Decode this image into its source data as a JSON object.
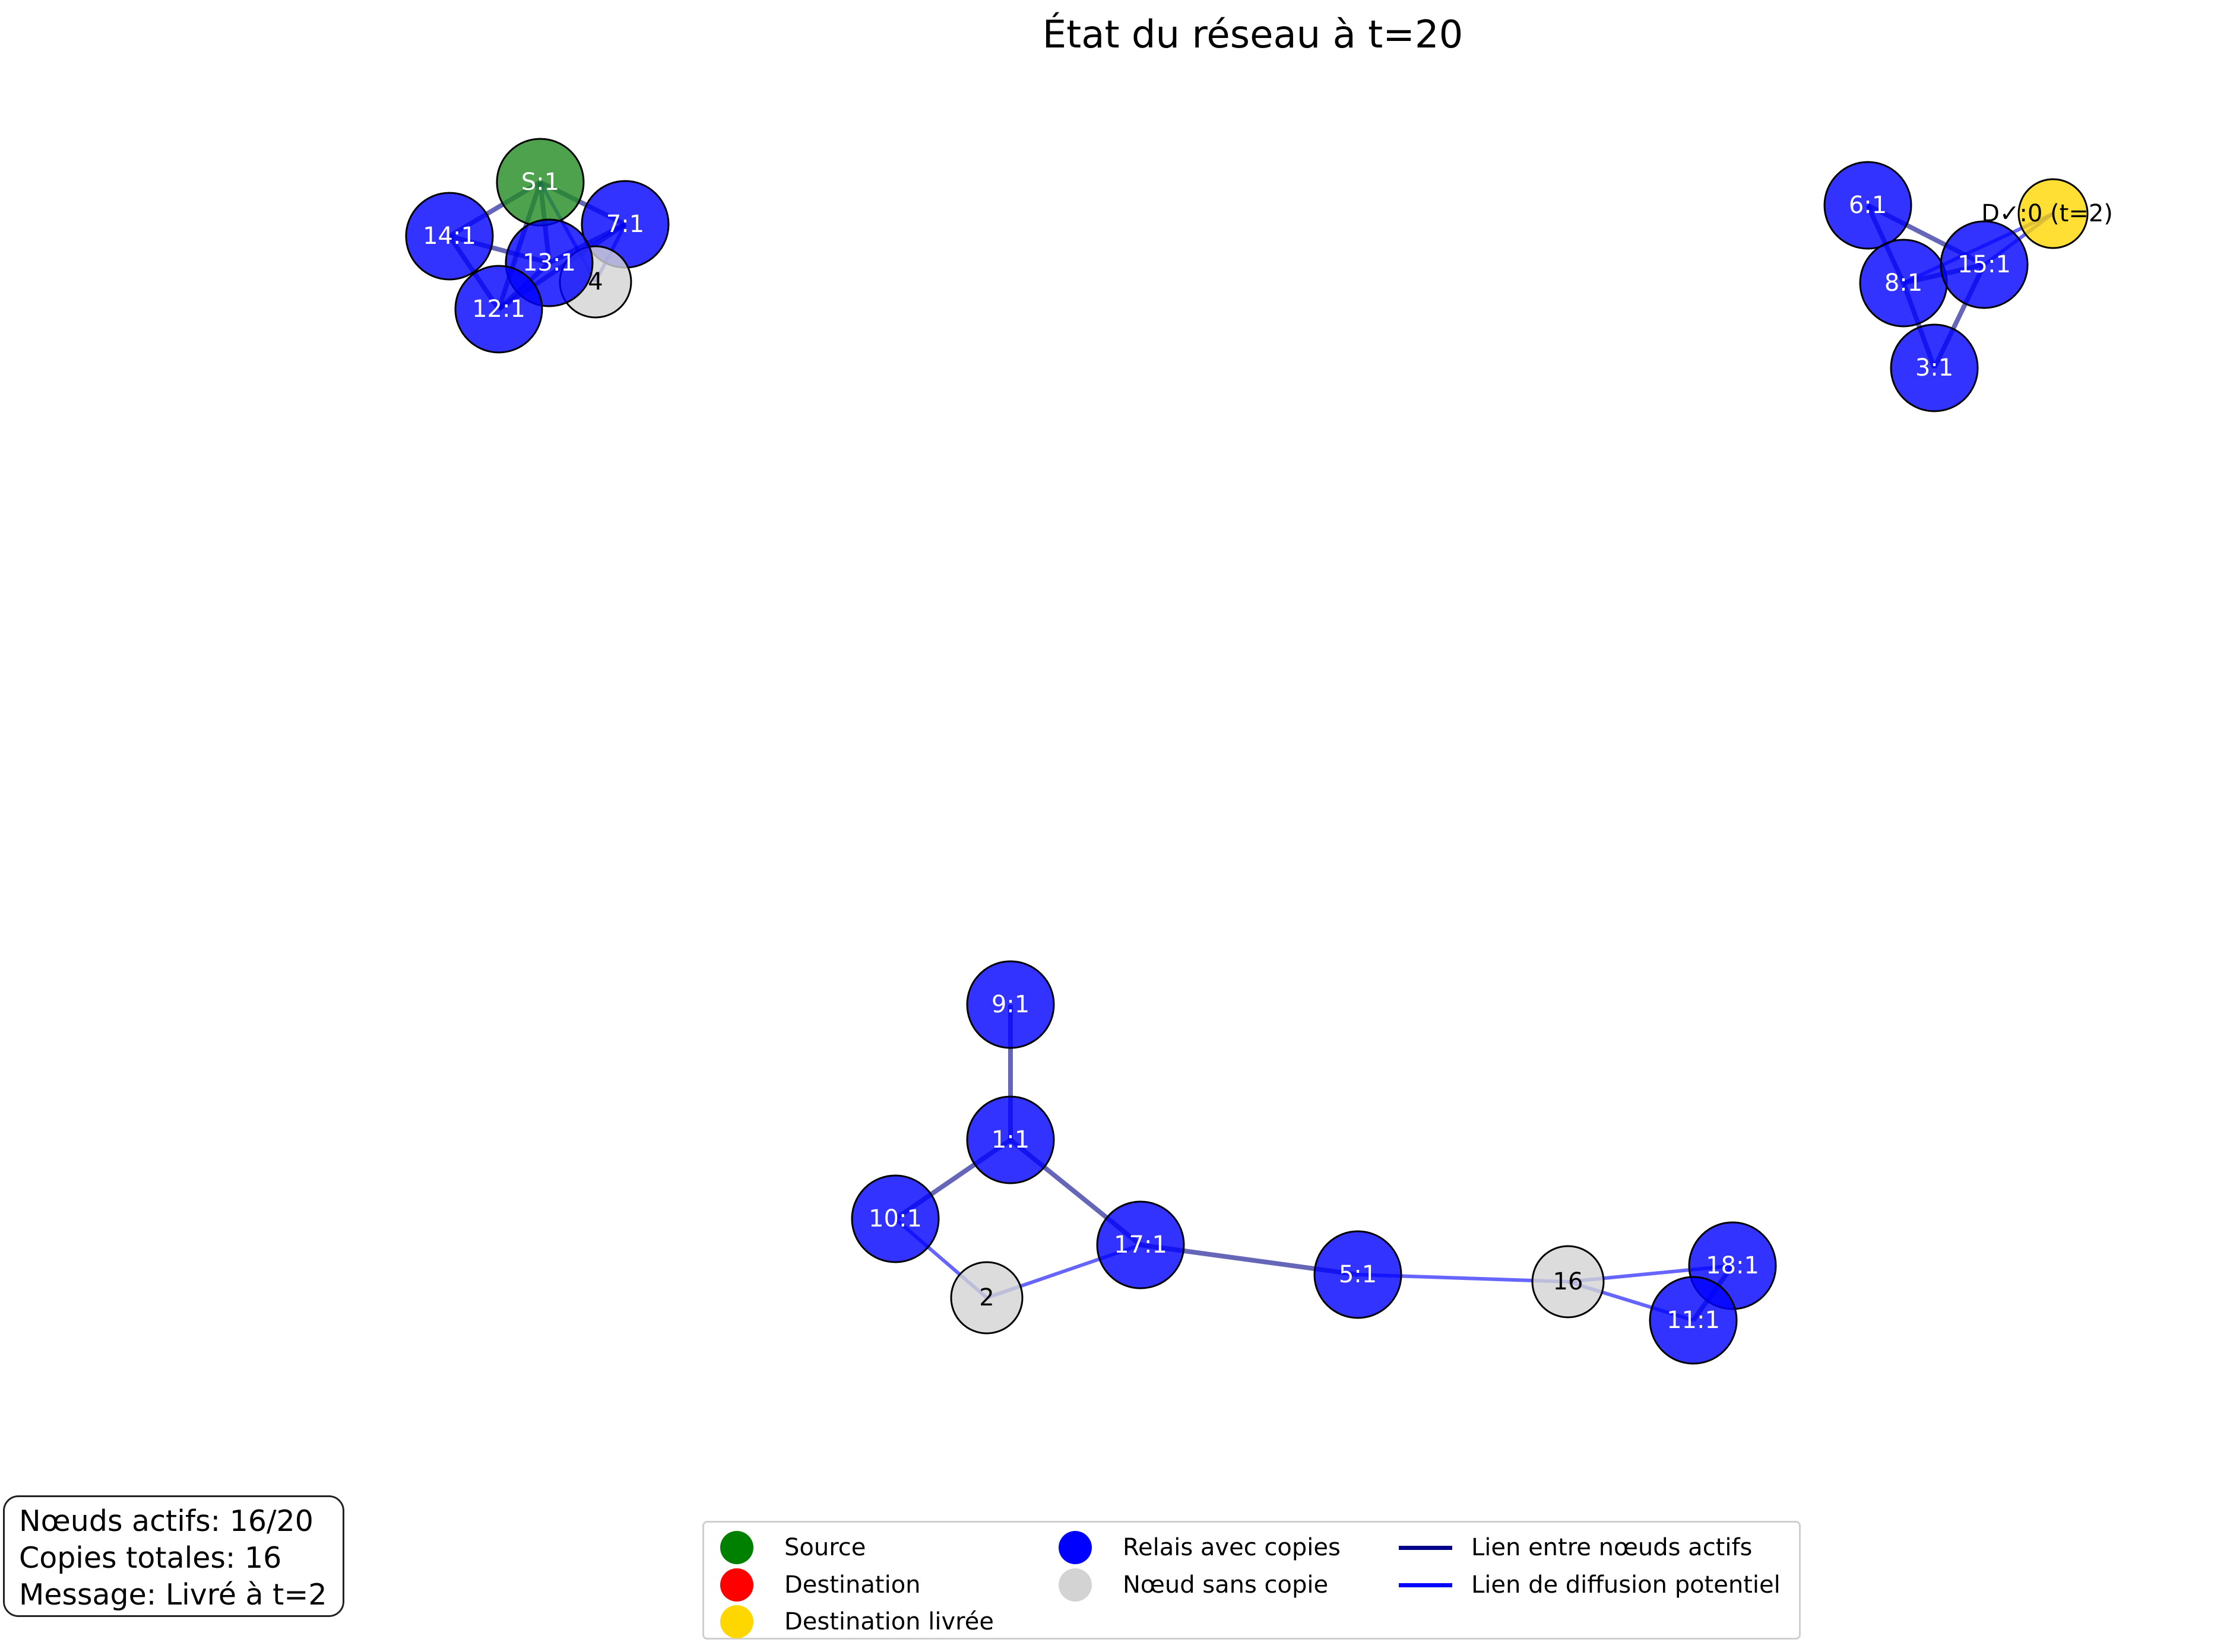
{
  "title": "État du réseau à t=20",
  "colors": {
    "source": "#228b22",
    "destination": "#ff0000",
    "destination_delivered": "#ffd700",
    "relay": "#0000ff",
    "empty": "#d3d3d3",
    "active_link": "#00008b",
    "potential_link": "#0000ff"
  },
  "nodes": [
    {
      "id": "S",
      "label": "S:1",
      "type": "source"
    },
    {
      "id": "7",
      "label": "7:1",
      "type": "relay"
    },
    {
      "id": "14",
      "label": "14:1",
      "type": "relay"
    },
    {
      "id": "4",
      "label": "4",
      "type": "empty"
    },
    {
      "id": "13",
      "label": "13:1",
      "type": "relay"
    },
    {
      "id": "12",
      "label": "12:1",
      "type": "relay"
    },
    {
      "id": "6",
      "label": "6:1",
      "type": "relay"
    },
    {
      "id": "D",
      "label": "D✓:0 (t=2)",
      "type": "destination_delivered"
    },
    {
      "id": "8",
      "label": "8:1",
      "type": "relay"
    },
    {
      "id": "15",
      "label": "15:1",
      "type": "relay"
    },
    {
      "id": "3",
      "label": "3:1",
      "type": "relay"
    },
    {
      "id": "9",
      "label": "9:1",
      "type": "relay"
    },
    {
      "id": "1",
      "label": "1:1",
      "type": "relay"
    },
    {
      "id": "10",
      "label": "10:1",
      "type": "relay"
    },
    {
      "id": "2",
      "label": "2",
      "type": "empty"
    },
    {
      "id": "17",
      "label": "17:1",
      "type": "relay"
    },
    {
      "id": "5",
      "label": "5:1",
      "type": "relay"
    },
    {
      "id": "16",
      "label": "16",
      "type": "empty"
    },
    {
      "id": "18",
      "label": "18:1",
      "type": "relay"
    },
    {
      "id": "11",
      "label": "11:1",
      "type": "relay"
    }
  ],
  "edges": [
    {
      "from": "S",
      "to": "14",
      "type": "active"
    },
    {
      "from": "S",
      "to": "13",
      "type": "active"
    },
    {
      "from": "S",
      "to": "12",
      "type": "active"
    },
    {
      "from": "S",
      "to": "7",
      "type": "active"
    },
    {
      "from": "S",
      "to": "4",
      "type": "potential"
    },
    {
      "from": "14",
      "to": "13",
      "type": "active"
    },
    {
      "from": "14",
      "to": "12",
      "type": "active"
    },
    {
      "from": "13",
      "to": "12",
      "type": "active"
    },
    {
      "from": "13",
      "to": "7",
      "type": "active"
    },
    {
      "from": "7",
      "to": "4",
      "type": "potential"
    },
    {
      "from": "7",
      "to": "12",
      "type": "active"
    },
    {
      "from": "6",
      "to": "8",
      "type": "active"
    },
    {
      "from": "6",
      "to": "15",
      "type": "active"
    },
    {
      "from": "8",
      "to": "15",
      "type": "active"
    },
    {
      "from": "8",
      "to": "3",
      "type": "active"
    },
    {
      "from": "15",
      "to": "3",
      "type": "active"
    },
    {
      "from": "15",
      "to": "D",
      "type": "potential"
    },
    {
      "from": "8",
      "to": "D",
      "type": "potential"
    },
    {
      "from": "9",
      "to": "1",
      "type": "active"
    },
    {
      "from": "1",
      "to": "10",
      "type": "active"
    },
    {
      "from": "1",
      "to": "17",
      "type": "active"
    },
    {
      "from": "10",
      "to": "2",
      "type": "potential"
    },
    {
      "from": "2",
      "to": "17",
      "type": "potential"
    },
    {
      "from": "17",
      "to": "5",
      "type": "active"
    },
    {
      "from": "5",
      "to": "16",
      "type": "potential"
    },
    {
      "from": "16",
      "to": "18",
      "type": "potential"
    },
    {
      "from": "16",
      "to": "11",
      "type": "potential"
    },
    {
      "from": "18",
      "to": "11",
      "type": "active"
    }
  ],
  "info": {
    "active_nodes": "Nœuds actifs: 16/20",
    "total_copies": "Copies totales: 16",
    "message": "Message: Livré à t=2"
  },
  "legend": {
    "source": "Source",
    "destination": "Destination",
    "destination_delivered": "Destination livrée",
    "relay": "Relais avec copies",
    "empty": "Nœud sans copie",
    "active_link": "Lien entre nœuds actifs",
    "potential_link": "Lien de diffusion potentiel"
  }
}
